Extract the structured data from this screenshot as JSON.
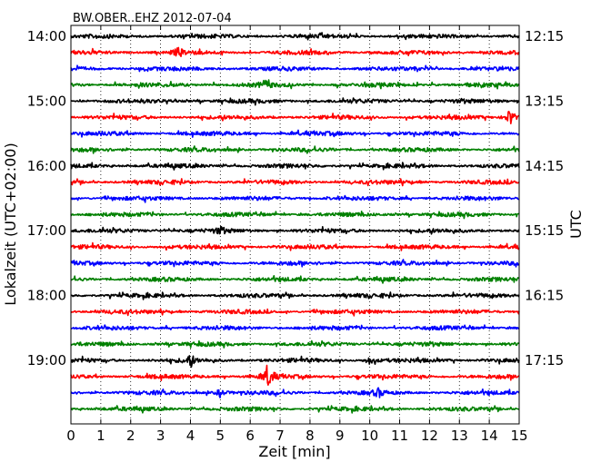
{
  "chart_data": {
    "type": "line",
    "title": "BW.OBER..EHZ 2012-07-04",
    "xlabel": "Zeit  [min]",
    "ylabel_left": "Lokalzeit (UTC+02:00)",
    "ylabel_right": "UTC",
    "xlim": [
      0,
      15
    ],
    "x_ticks": [
      "0",
      "1",
      "2",
      "3",
      "4",
      "5",
      "6",
      "7",
      "8",
      "9",
      "10",
      "11",
      "12",
      "13",
      "14",
      "15"
    ],
    "grid": "vertical dotted lines at each minute",
    "left_ticks": [
      "14:00",
      "15:00",
      "16:00",
      "17:00",
      "18:00",
      "19:00"
    ],
    "right_ticks": [
      "12:15",
      "13:15",
      "14:15",
      "15:15",
      "16:15",
      "17:15"
    ],
    "trace_colors": [
      "#000000",
      "#ff0000",
      "#0000ff",
      "#008000"
    ],
    "trace_count": 24,
    "events": [
      {
        "trace": 1,
        "x": 3.6,
        "amp": 1.6
      },
      {
        "trace": 3,
        "x": 6.5,
        "amp": 1.5
      },
      {
        "trace": 5,
        "x": 14.7,
        "amp": 3.6
      },
      {
        "trace": 12,
        "x": 5.0,
        "amp": 1.2
      },
      {
        "trace": 20,
        "x": 4.0,
        "amp": 2.0
      },
      {
        "trace": 20,
        "x": 10.0,
        "amp": 1.4
      },
      {
        "trace": 21,
        "x": 6.6,
        "amp": 4.2
      },
      {
        "trace": 22,
        "x": 5.0,
        "amp": 1.6
      },
      {
        "trace": 22,
        "x": 10.3,
        "amp": 1.4
      }
    ]
  }
}
